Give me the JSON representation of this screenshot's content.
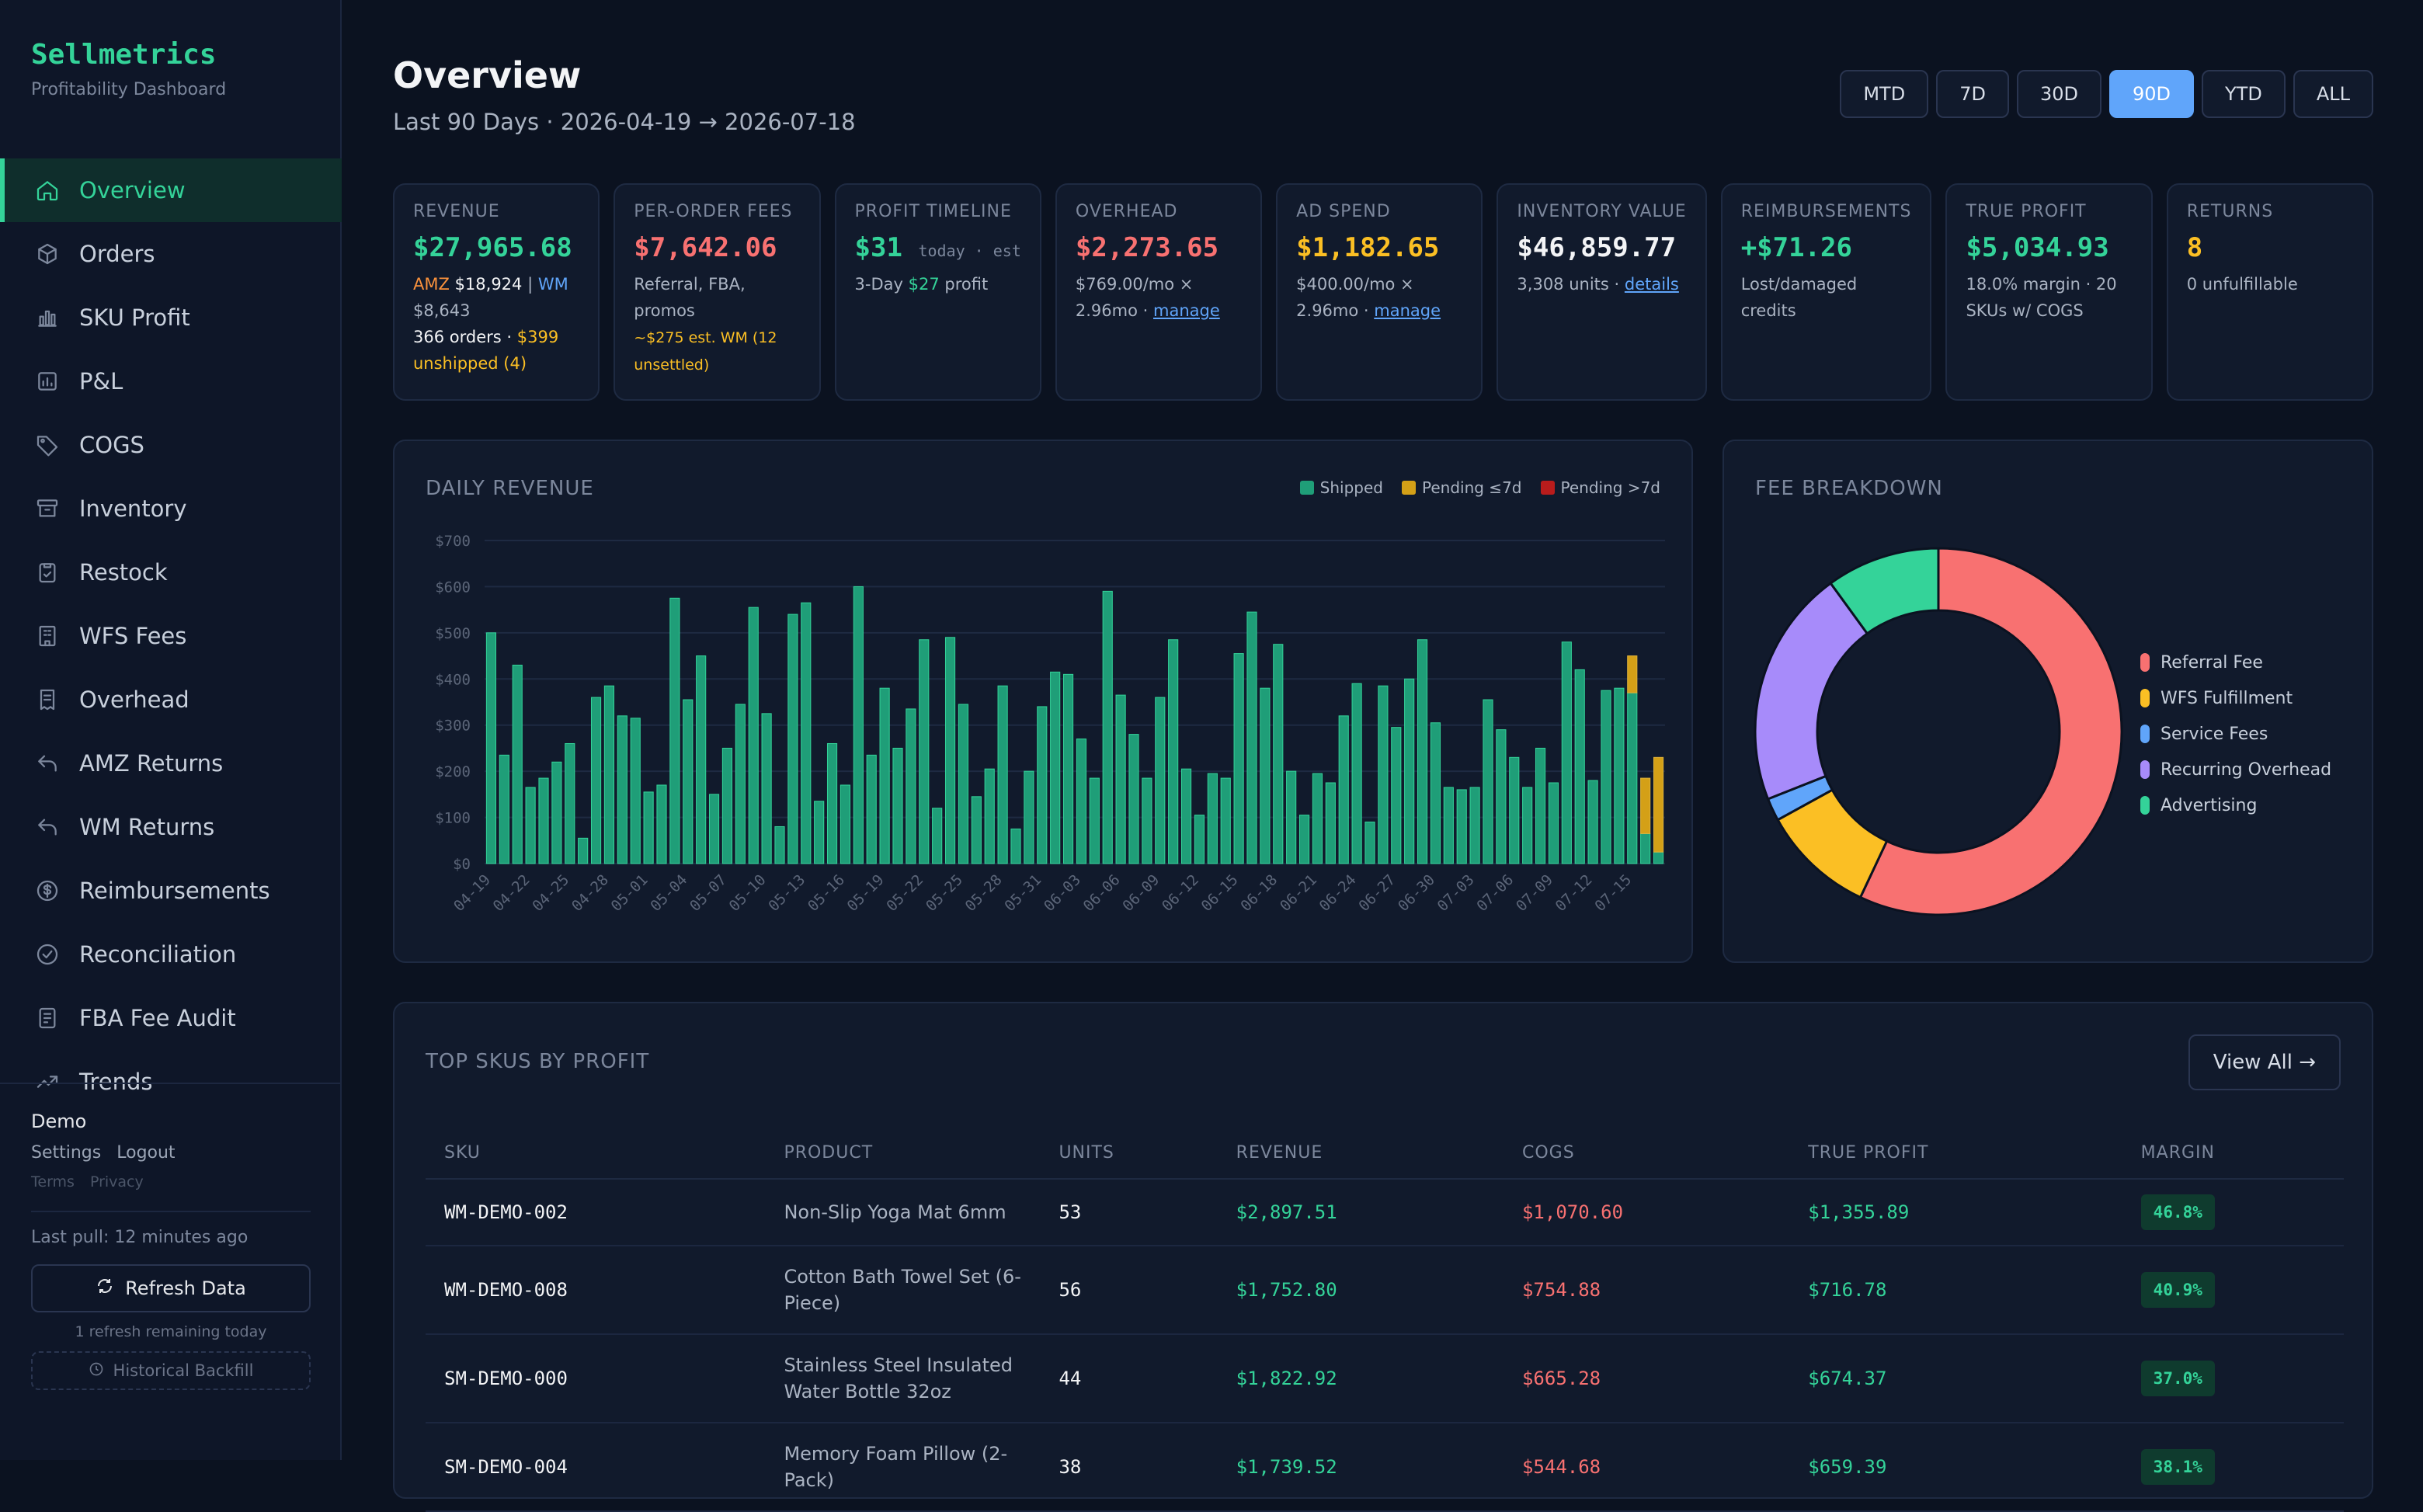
{
  "brand": {
    "name": "Sellmetrics",
    "subtitle": "Profitability Dashboard"
  },
  "nav": [
    {
      "label": "Overview",
      "icon": "home-icon",
      "active": true
    },
    {
      "label": "Orders",
      "icon": "box-icon"
    },
    {
      "label": "SKU Profit",
      "icon": "bar-chart-icon"
    },
    {
      "label": "P&L",
      "icon": "report-icon"
    },
    {
      "label": "COGS",
      "icon": "tag-icon"
    },
    {
      "label": "Inventory",
      "icon": "archive-icon"
    },
    {
      "label": "Restock",
      "icon": "clipboard-icon"
    },
    {
      "label": "WFS Fees",
      "icon": "building-icon"
    },
    {
      "label": "Overhead",
      "icon": "receipt-icon"
    },
    {
      "label": "AMZ Returns",
      "icon": "return-icon"
    },
    {
      "label": "WM Returns",
      "icon": "return-icon"
    },
    {
      "label": "Reimbursements",
      "icon": "dollar-circle-icon"
    },
    {
      "label": "Reconciliation",
      "icon": "check-circle-icon"
    },
    {
      "label": "FBA Fee Audit",
      "icon": "audit-icon"
    },
    {
      "label": "Trends",
      "icon": "trend-icon"
    }
  ],
  "user": {
    "name": "Demo",
    "settings": "Settings",
    "logout": "Logout",
    "terms": "Terms",
    "privacy": "Privacy",
    "last_pull": "Last pull: 12 minutes ago",
    "refresh": "Refresh Data",
    "refresh_note": "1 refresh remaining today",
    "backfill": "Historical Backfill"
  },
  "header": {
    "title": "Overview",
    "subtitle": "Last 90 Days · 2026-04-19 → 2026-07-18",
    "ranges": [
      "MTD",
      "7D",
      "30D",
      "90D",
      "YTD",
      "ALL"
    ],
    "active_range": "90D"
  },
  "kpis": {
    "revenue": {
      "label": "Revenue",
      "value": "$27,965.68",
      "amz": "AMZ",
      "amz_value": "$18,924",
      "sep": "|",
      "wm": "WM",
      "wm_value": "$8,643",
      "orders": "366 orders ·",
      "unshipped": "$399 unshipped (4)"
    },
    "fees": {
      "label": "Per-Order Fees",
      "value": "$7,642.06",
      "desc": "Referral, FBA, promos",
      "note": "~$275 est. WM (12 unsettled)"
    },
    "timeline": {
      "label": "Profit Timeline",
      "value": "$31",
      "today": "today · est",
      "sub_pre": "3-Day",
      "sub_value": "$27",
      "sub_post": "profit"
    },
    "overhead": {
      "label": "Overhead",
      "value": "$2,273.65",
      "desc": "$769.00/mo × 2.96mo ·",
      "link": "manage"
    },
    "ad_spend": {
      "label": "Ad Spend",
      "value": "$1,182.65",
      "desc": "$400.00/mo × 2.96mo ·",
      "link": "manage"
    },
    "inventory": {
      "label": "Inventory Value",
      "value": "$46,859.77",
      "desc": "3,308 units ·",
      "link": "details"
    },
    "reimb": {
      "label": "Reimbursements",
      "value": "+$71.26",
      "desc": "Lost/damaged credits"
    },
    "true_profit": {
      "label": "True Profit",
      "value": "$5,034.93",
      "desc": "18.0% margin · 20 SKUs w/ COGS"
    },
    "returns": {
      "label": "Returns",
      "value": "8",
      "desc": "0 unfulfillable"
    }
  },
  "revenue_chart_title": "Daily Revenue",
  "fee_title": "Fee Breakdown",
  "chart_data": [
    {
      "type": "bar",
      "title": "Daily Revenue",
      "ylim": [
        0,
        700
      ],
      "yticks": [
        "$0",
        "$100",
        "$200",
        "$300",
        "$400",
        "$500",
        "$600",
        "$700"
      ],
      "xticks": [
        "04-19",
        "04-22",
        "04-25",
        "04-28",
        "05-01",
        "05-04",
        "05-07",
        "05-10",
        "05-13",
        "05-16",
        "05-19",
        "05-22",
        "05-25",
        "05-28",
        "05-31",
        "06-03",
        "06-06",
        "06-09",
        "06-12",
        "06-15",
        "06-18",
        "06-21",
        "06-24",
        "06-27",
        "06-30",
        "07-03",
        "07-06",
        "07-09",
        "07-12",
        "07-15"
      ],
      "series_names": [
        "Shipped",
        "Pending ≤7d",
        "Pending >7d"
      ],
      "colors": [
        "#1f9e78",
        "#d4a017",
        "#b91c1c"
      ],
      "shipped": [
        500,
        235,
        430,
        165,
        185,
        220,
        260,
        55,
        360,
        385,
        320,
        315,
        155,
        170,
        575,
        355,
        450,
        150,
        250,
        345,
        555,
        325,
        80,
        540,
        565,
        135,
        260,
        170,
        600,
        235,
        380,
        250,
        335,
        485,
        120,
        490,
        345,
        145,
        205,
        385,
        75,
        200,
        340,
        415,
        410,
        270,
        185,
        590,
        365,
        280,
        185,
        360,
        485,
        205,
        105,
        195,
        185,
        455,
        545,
        380,
        475,
        200,
        105,
        195,
        175,
        320,
        390,
        90,
        385,
        295,
        400,
        485,
        305,
        165,
        160,
        165,
        355,
        290,
        230,
        165,
        250,
        175,
        480,
        420,
        180,
        375,
        380,
        370,
        65,
        25
      ],
      "pending_short": [
        0,
        0,
        0,
        0,
        0,
        0,
        0,
        0,
        0,
        0,
        0,
        0,
        0,
        0,
        0,
        0,
        0,
        0,
        0,
        0,
        0,
        0,
        0,
        0,
        0,
        0,
        0,
        0,
        0,
        0,
        0,
        0,
        0,
        0,
        0,
        0,
        0,
        0,
        0,
        0,
        0,
        0,
        0,
        0,
        0,
        0,
        0,
        0,
        0,
        0,
        0,
        0,
        0,
        0,
        0,
        0,
        0,
        0,
        0,
        0,
        0,
        0,
        0,
        0,
        0,
        0,
        0,
        0,
        0,
        0,
        0,
        0,
        0,
        0,
        0,
        0,
        0,
        0,
        0,
        0,
        0,
        0,
        0,
        0,
        0,
        0,
        0,
        80,
        120,
        205
      ],
      "pending_long": [
        0,
        0,
        0,
        0,
        0,
        0,
        0,
        0,
        0,
        0,
        0,
        0,
        0,
        0,
        0,
        0,
        0,
        0,
        0,
        0,
        0,
        0,
        0,
        0,
        0,
        0,
        0,
        0,
        0,
        0,
        0,
        0,
        0,
        0,
        0,
        0,
        0,
        0,
        0,
        0,
        0,
        0,
        0,
        0,
        0,
        0,
        0,
        0,
        0,
        0,
        0,
        0,
        0,
        0,
        0,
        0,
        0,
        0,
        0,
        0,
        0,
        0,
        0,
        0,
        0,
        0,
        0,
        0,
        0,
        0,
        0,
        0,
        0,
        0,
        0,
        0,
        0,
        0,
        0,
        0,
        0,
        0,
        0,
        0,
        0,
        0,
        0,
        0,
        0,
        0
      ]
    },
    {
      "type": "pie",
      "title": "Fee Breakdown",
      "labels": [
        "Referral Fee",
        "WFS Fulfillment",
        "Service Fees",
        "Recurring Overhead",
        "Advertising"
      ],
      "values": [
        57,
        10,
        2,
        21,
        10
      ],
      "colors": [
        "#f87171",
        "#fbbf24",
        "#60a5fa",
        "#a78bfa",
        "#34d399"
      ]
    }
  ],
  "sku": {
    "title": "Top SKUs by Profit",
    "view_all": "View All →",
    "columns": [
      "SKU",
      "Product",
      "Units",
      "Revenue",
      "COGS",
      "True Profit",
      "Margin"
    ],
    "rows": [
      {
        "sku": "WM-DEMO-002",
        "product": "Non-Slip Yoga Mat 6mm",
        "units": "53",
        "revenue": "$2,897.51",
        "cogs": "$1,070.60",
        "profit": "$1,355.89",
        "margin": "46.8%"
      },
      {
        "sku": "WM-DEMO-008",
        "product": "Cotton Bath Towel Set (6-Piece)",
        "units": "56",
        "revenue": "$1,752.80",
        "cogs": "$754.88",
        "profit": "$716.78",
        "margin": "40.9%"
      },
      {
        "sku": "SM-DEMO-000",
        "product": "Stainless Steel Insulated Water Bottle 32oz",
        "units": "44",
        "revenue": "$1,822.92",
        "cogs": "$665.28",
        "profit": "$674.37",
        "margin": "37.0%"
      },
      {
        "sku": "SM-DEMO-004",
        "product": "Memory Foam Pillow (2-Pack)",
        "units": "38",
        "revenue": "$1,739.52",
        "cogs": "$544.68",
        "profit": "$659.39",
        "margin": "38.1%"
      }
    ]
  }
}
